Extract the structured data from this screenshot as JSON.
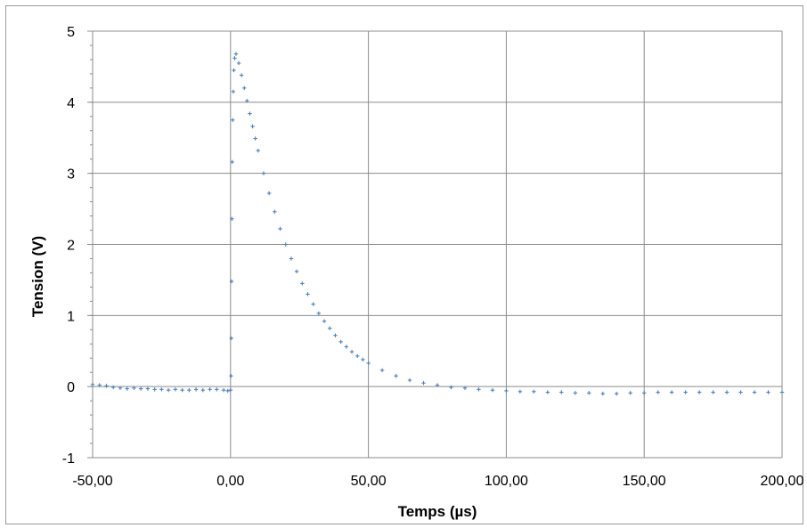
{
  "chart_data": {
    "type": "scatter",
    "xlabel": "Temps (µs)",
    "ylabel": "Tension (V)",
    "xlim": [
      -50,
      200
    ],
    "ylim": [
      -1,
      5
    ],
    "x_ticks": [
      -50,
      0,
      50,
      100,
      150,
      200
    ],
    "x_tick_labels": [
      "-50,00",
      "0,00",
      "50,00",
      "100,00",
      "150,00",
      "200,00"
    ],
    "y_ticks": [
      -1,
      0,
      1,
      2,
      3,
      4,
      5
    ],
    "y_tick_labels": [
      "-1",
      "0",
      "1",
      "2",
      "3",
      "4",
      "5"
    ],
    "grid": true,
    "marker": "+",
    "color": "#4f81bd",
    "series": [
      {
        "points": [
          [
            -50,
            0.03
          ],
          [
            -47.5,
            0.02
          ],
          [
            -45,
            0.01
          ],
          [
            -42.5,
            -0.01
          ],
          [
            -40,
            -0.02
          ],
          [
            -37.5,
            -0.03
          ],
          [
            -35,
            -0.02
          ],
          [
            -32.5,
            -0.03
          ],
          [
            -30,
            -0.03
          ],
          [
            -27.5,
            -0.04
          ],
          [
            -25,
            -0.04
          ],
          [
            -22.5,
            -0.05
          ],
          [
            -20,
            -0.04
          ],
          [
            -17.5,
            -0.05
          ],
          [
            -15,
            -0.05
          ],
          [
            -12.5,
            -0.04
          ],
          [
            -10,
            -0.05
          ],
          [
            -7.5,
            -0.04
          ],
          [
            -5,
            -0.04
          ],
          [
            -2.5,
            -0.05
          ],
          [
            -1,
            -0.06
          ],
          [
            0,
            -0.05
          ],
          [
            0.2,
            0.15
          ],
          [
            0.3,
            0.68
          ],
          [
            0.4,
            1.48
          ],
          [
            0.5,
            2.36
          ],
          [
            0.6,
            3.16
          ],
          [
            0.8,
            3.75
          ],
          [
            1,
            4.15
          ],
          [
            1.2,
            4.45
          ],
          [
            1.5,
            4.62
          ],
          [
            2,
            4.68
          ],
          [
            3,
            4.55
          ],
          [
            4,
            4.38
          ],
          [
            5,
            4.2
          ],
          [
            6,
            4.02
          ],
          [
            7,
            3.84
          ],
          [
            8,
            3.66
          ],
          [
            9,
            3.49
          ],
          [
            10,
            3.32
          ],
          [
            12,
            3.0
          ],
          [
            14,
            2.72
          ],
          [
            16,
            2.46
          ],
          [
            18,
            2.22
          ],
          [
            20,
            2.0
          ],
          [
            22,
            1.8
          ],
          [
            24,
            1.62
          ],
          [
            26,
            1.45
          ],
          [
            28,
            1.3
          ],
          [
            30,
            1.16
          ],
          [
            32,
            1.03
          ],
          [
            34,
            0.92
          ],
          [
            36,
            0.82
          ],
          [
            38,
            0.72
          ],
          [
            40,
            0.63
          ],
          [
            42,
            0.56
          ],
          [
            44,
            0.49
          ],
          [
            46,
            0.43
          ],
          [
            48,
            0.38
          ],
          [
            50,
            0.33
          ],
          [
            55,
            0.23
          ],
          [
            60,
            0.15
          ],
          [
            65,
            0.09
          ],
          [
            70,
            0.05
          ],
          [
            75,
            0.02
          ],
          [
            80,
            -0.01
          ],
          [
            85,
            -0.02
          ],
          [
            90,
            -0.04
          ],
          [
            95,
            -0.05
          ],
          [
            100,
            -0.06
          ],
          [
            105,
            -0.07
          ],
          [
            110,
            -0.07
          ],
          [
            115,
            -0.08
          ],
          [
            120,
            -0.08
          ],
          [
            125,
            -0.09
          ],
          [
            130,
            -0.09
          ],
          [
            135,
            -0.1
          ],
          [
            140,
            -0.1
          ],
          [
            145,
            -0.09
          ],
          [
            150,
            -0.09
          ],
          [
            155,
            -0.08
          ],
          [
            160,
            -0.08
          ],
          [
            165,
            -0.08
          ],
          [
            170,
            -0.08
          ],
          [
            175,
            -0.08
          ],
          [
            180,
            -0.08
          ],
          [
            185,
            -0.08
          ],
          [
            190,
            -0.08
          ],
          [
            195,
            -0.08
          ],
          [
            200,
            -0.08
          ]
        ]
      }
    ]
  }
}
